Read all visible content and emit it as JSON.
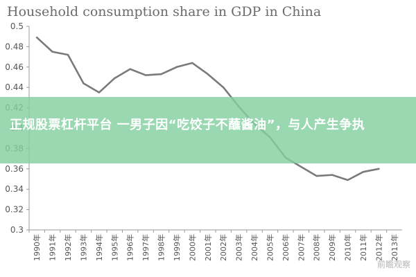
{
  "chart_data": {
    "type": "line",
    "title": "Household consumption share in GDP in China",
    "xlabel": "",
    "ylabel": "",
    "x": [
      "1990年",
      "1991年",
      "1992年",
      "1993年",
      "1994年",
      "1995年",
      "1996年",
      "1997年",
      "1998年",
      "1999年",
      "2000年",
      "2001年",
      "2002年",
      "2003年",
      "2004年",
      "2005年",
      "2006年",
      "2007年",
      "2008年",
      "2009年",
      "2010年",
      "2011年",
      "2012年",
      "2013年"
    ],
    "series": [
      {
        "values": [
          0.489,
          0.475,
          0.472,
          0.444,
          0.435,
          0.449,
          0.458,
          0.452,
          0.453,
          0.46,
          0.464,
          0.453,
          0.44,
          0.421,
          0.404,
          0.391,
          0.371,
          0.362,
          0.353,
          0.354,
          0.349,
          0.357,
          0.36,
          null
        ]
      }
    ],
    "ylim": [
      0.3,
      0.5
    ],
    "yticks": [
      "0.3",
      "0.32",
      "0.34",
      "0.36",
      "0.38",
      "0.4",
      "0.42",
      "0.44",
      "0.46",
      "0.48",
      "0.5"
    ],
    "grid": false,
    "line_color": "#7a7a7a"
  },
  "overlay": {
    "text": "正规股票杠杆平台 一男子因“吃饺子不蘸酱油”，与人产生争执",
    "background": "#82d0a0"
  },
  "watermark": {
    "text": "前瞻观察"
  }
}
